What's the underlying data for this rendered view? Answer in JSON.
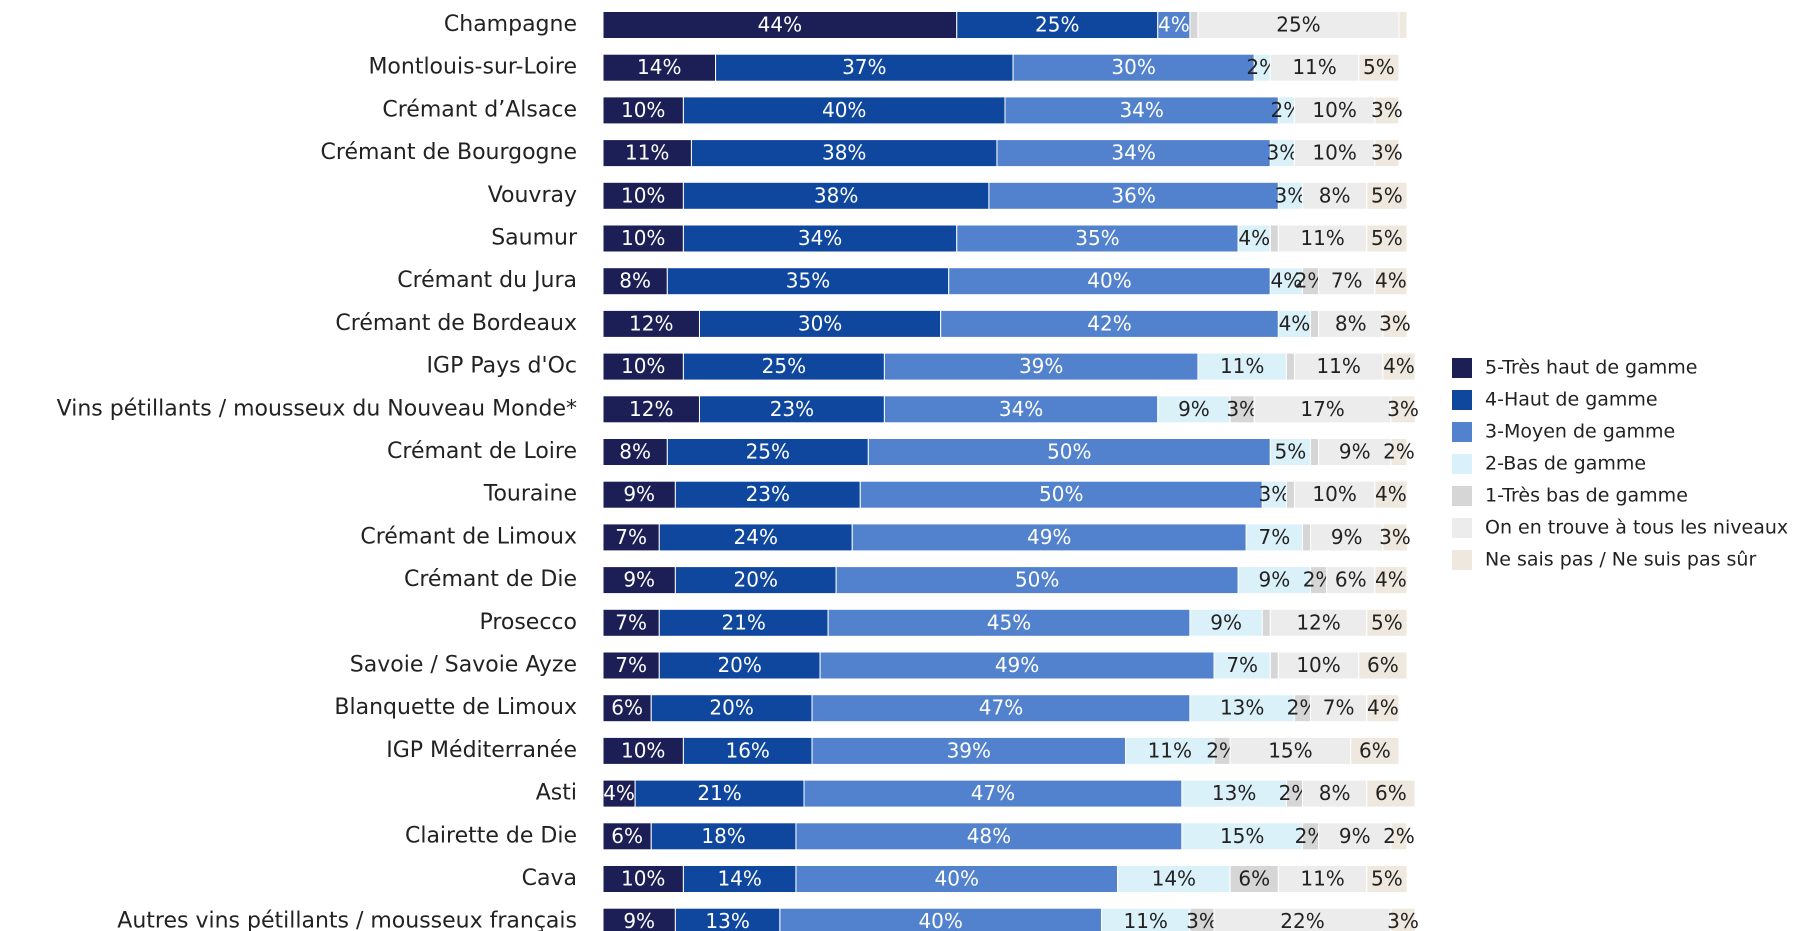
{
  "chart_data": {
    "type": "stacked_barh",
    "categories": [
      "Champagne",
      "Montlouis-sur-Loire",
      "Crémant d’Alsace",
      "Crémant de Bourgogne",
      "Vouvray",
      "Saumur",
      "Crémant du Jura",
      "Crémant de Bordeaux",
      "IGP Pays d'Oc",
      "Vins pétillants / mousseux du Nouveau Monde*",
      "Crémant de Loire",
      "Touraine",
      "Crémant de Limoux",
      "Crémant de Die",
      "Prosecco",
      "Savoie / Savoie Ayze",
      "Blanquette de Limoux",
      "IGP Méditerranée",
      "Asti",
      "Clairette de Die",
      "Cava",
      "Autres vins pétillants / mousseux français"
    ],
    "xlim": [
      0,
      100
    ],
    "series": [
      {
        "name": "5-Très haut de gamme",
        "color": "#1b1f55",
        "values": [
          44,
          14,
          10,
          11,
          10,
          10,
          8,
          12,
          10,
          12,
          8,
          9,
          7,
          9,
          7,
          7,
          6,
          10,
          4,
          6,
          10,
          9
        ],
        "value_labels": [
          "44%",
          "14%",
          "10%",
          "11%",
          "10%",
          "10%",
          "8%",
          "12%",
          "10%",
          "12%",
          "8%",
          "9%",
          "7%",
          "9%",
          "7%",
          "7%",
          "6%",
          "10%",
          "4%",
          "6%",
          "10%",
          "9%"
        ]
      },
      {
        "name": "4-Haut de gamme",
        "color": "#0f479f",
        "values": [
          25,
          37,
          40,
          38,
          38,
          34,
          35,
          30,
          25,
          23,
          25,
          23,
          24,
          20,
          21,
          20,
          20,
          16,
          21,
          18,
          14,
          13
        ],
        "value_labels": [
          "25%",
          "37%",
          "40%",
          "38%",
          "38%",
          "34%",
          "35%",
          "30%",
          "25%",
          "23%",
          "25%",
          "23%",
          "24%",
          "20%",
          "21%",
          "20%",
          "20%",
          "16%",
          "21%",
          "18%",
          "14%",
          "13%"
        ]
      },
      {
        "name": "3-Moyen de gamme",
        "color": "#5282cd",
        "values": [
          4,
          30,
          34,
          34,
          36,
          35,
          40,
          42,
          39,
          34,
          50,
          50,
          49,
          50,
          45,
          49,
          47,
          39,
          47,
          48,
          40,
          40
        ],
        "value_labels": [
          "4%",
          "30%",
          "34%",
          "34%",
          "36%",
          "35%",
          "40%",
          "42%",
          "39%",
          "34%",
          "50%",
          "50%",
          "49%",
          "50%",
          "45%",
          "49%",
          "47%",
          "39%",
          "47%",
          "48%",
          "40%",
          "40%"
        ]
      },
      {
        "name": "2-Bas de gamme",
        "color": "#dbf1f9",
        "values": [
          0,
          2,
          2,
          3,
          3,
          4,
          4,
          4,
          11,
          9,
          5,
          3,
          7,
          9,
          9,
          7,
          13,
          11,
          13,
          15,
          14,
          11
        ],
        "value_labels": [
          null,
          "2%",
          "2%",
          "3%",
          "3%",
          "4%",
          "4%",
          "4%",
          "11%",
          "9%",
          "5%",
          "3%",
          "7%",
          "9%",
          "9%",
          "7%",
          "13%",
          "11%",
          "13%",
          "15%",
          "14%",
          "11%"
        ]
      },
      {
        "name": "1-Très bas de gamme",
        "color": "#d6d6d6",
        "values": [
          1,
          0,
          0,
          0,
          0,
          1,
          2,
          1,
          1,
          3,
          1,
          1,
          1,
          2,
          1,
          1,
          2,
          2,
          2,
          2,
          6,
          3
        ],
        "value_labels": [
          null,
          null,
          null,
          null,
          null,
          null,
          "2%",
          null,
          null,
          "3%",
          null,
          null,
          null,
          "2%",
          null,
          null,
          "2%",
          "2%",
          "2%",
          "2%",
          "6%",
          "3%"
        ]
      },
      {
        "name": "On en trouve à tous les niveaux",
        "color": "#ececec",
        "values": [
          25,
          11,
          10,
          10,
          8,
          11,
          7,
          8,
          11,
          17,
          9,
          10,
          9,
          6,
          12,
          10,
          7,
          15,
          8,
          9,
          11,
          22
        ],
        "value_labels": [
          "25%",
          "11%",
          "10%",
          "10%",
          "8%",
          "11%",
          "7%",
          "8%",
          "11%",
          "17%",
          "9%",
          "10%",
          "9%",
          "6%",
          "12%",
          "10%",
          "7%",
          "15%",
          "8%",
          "9%",
          "11%",
          "22%"
        ]
      },
      {
        "name": "Ne sais pas / Ne suis pas sûr",
        "color": "#efe8de",
        "values": [
          1,
          5,
          3,
          3,
          5,
          5,
          4,
          3,
          4,
          3,
          2,
          4,
          3,
          4,
          5,
          6,
          4,
          6,
          6,
          2,
          5,
          3
        ],
        "value_labels": [
          null,
          "5%",
          "3%",
          "3%",
          "5%",
          "5%",
          "4%",
          "3%",
          "4%",
          "3%",
          "2%",
          "4%",
          "3%",
          "4%",
          "5%",
          "6%",
          "4%",
          "6%",
          "6%",
          "2%",
          "5%",
          "3%"
        ]
      }
    ]
  }
}
